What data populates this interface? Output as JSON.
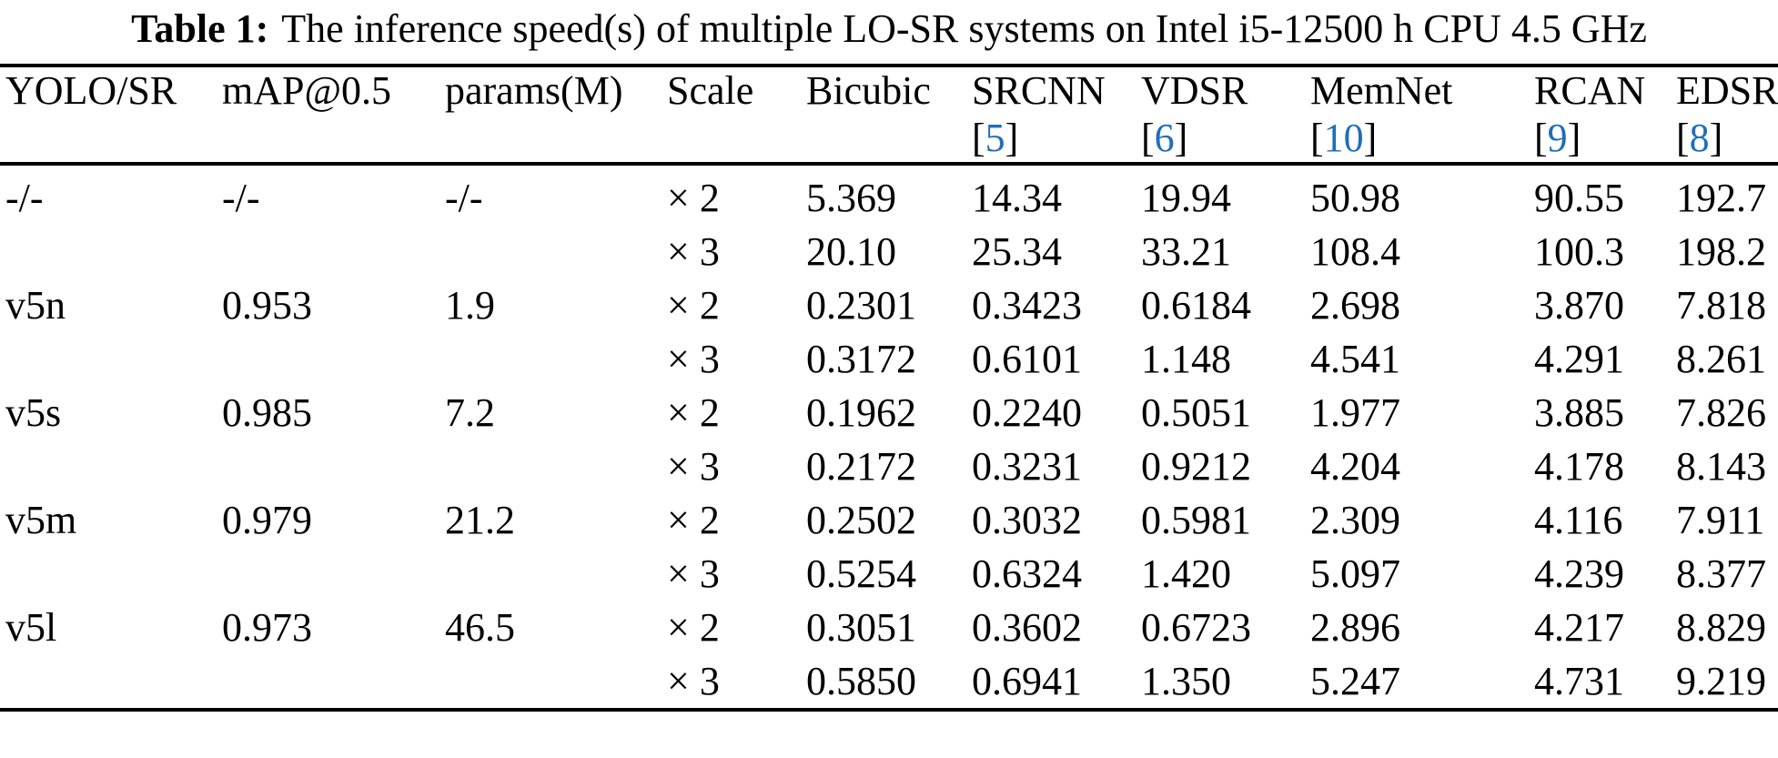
{
  "caption": {
    "label": "Table 1:",
    "text": "The inference speed(s) of multiple LO-SR systems on Intel i5-12500 h CPU 4.5 GHz"
  },
  "colors": {
    "text": "#000000",
    "citation_blue": "#1f6eb8",
    "rule": "#000000"
  },
  "table": {
    "cite_brackets": {
      "open": "[",
      "close": "]"
    },
    "columns": [
      {
        "name": "YOLO/SR",
        "cite": ""
      },
      {
        "name": "mAP@0.5",
        "cite": ""
      },
      {
        "name": "params(M)",
        "cite": ""
      },
      {
        "name": "Scale",
        "cite": ""
      },
      {
        "name": "Bicubic",
        "cite": ""
      },
      {
        "name": "SRCNN",
        "cite": "5"
      },
      {
        "name": "VDSR",
        "cite": "6"
      },
      {
        "name": "MemNet",
        "cite": "10"
      },
      {
        "name": "RCAN",
        "cite": "9"
      },
      {
        "name": "EDSR",
        "cite": "8"
      }
    ],
    "rows": [
      [
        "-/-",
        "-/-",
        "-/-",
        "× 2",
        "5.369",
        "14.34",
        "19.94",
        "50.98",
        "90.55",
        "192.7"
      ],
      [
        "",
        "",
        "",
        "× 3",
        "20.10",
        "25.34",
        "33.21",
        "108.4",
        "100.3",
        "198.2"
      ],
      [
        "v5n",
        "0.953",
        "1.9",
        "× 2",
        "0.2301",
        "0.3423",
        "0.6184",
        "2.698",
        "3.870",
        "7.818"
      ],
      [
        "",
        "",
        "",
        "× 3",
        "0.3172",
        "0.6101",
        "1.148",
        "4.541",
        "4.291",
        "8.261"
      ],
      [
        "v5s",
        "0.985",
        "7.2",
        "× 2",
        "0.1962",
        "0.2240",
        "0.5051",
        "1.977",
        "3.885",
        "7.826"
      ],
      [
        "",
        "",
        "",
        "× 3",
        "0.2172",
        "0.3231",
        "0.9212",
        "4.204",
        "4.178",
        "8.143"
      ],
      [
        "v5m",
        "0.979",
        "21.2",
        "× 2",
        "0.2502",
        "0.3032",
        "0.5981",
        "2.309",
        "4.116",
        "7.911"
      ],
      [
        "",
        "",
        "",
        "× 3",
        "0.5254",
        "0.6324",
        "1.420",
        "5.097",
        "4.239",
        "8.377"
      ],
      [
        "v5l",
        "0.973",
        "46.5",
        "× 2",
        "0.3051",
        "0.3602",
        "0.6723",
        "2.896",
        "4.217",
        "8.829"
      ],
      [
        "",
        "",
        "",
        "× 3",
        "0.5850",
        "0.6941",
        "1.350",
        "5.247",
        "4.731",
        "9.219"
      ]
    ]
  }
}
